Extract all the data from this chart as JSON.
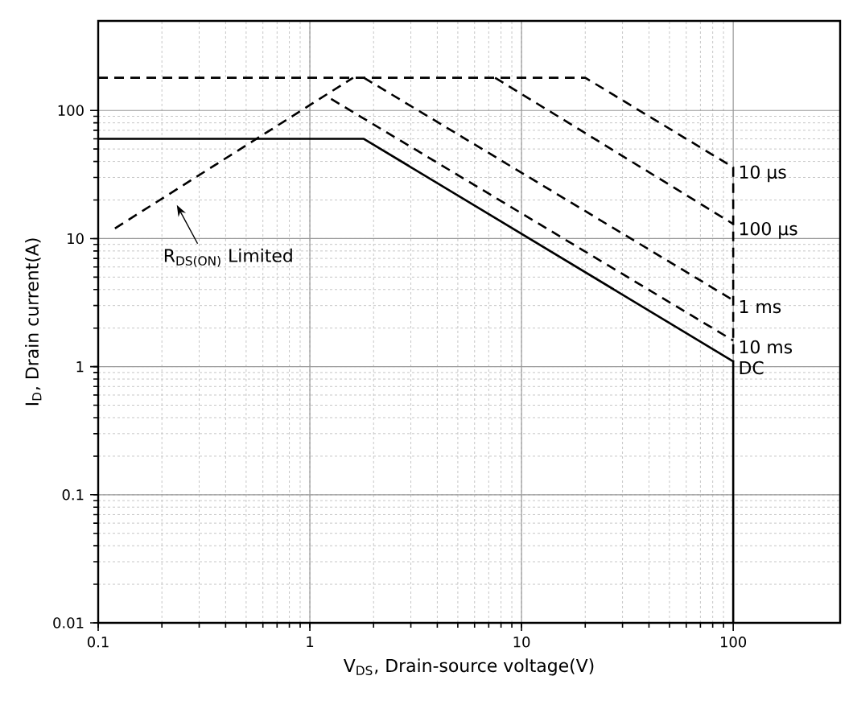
{
  "chart_data": {
    "type": "line",
    "xlabel": "V$_{DS}$, Drain-source voltage(V)",
    "ylabel": "I$_{D}$, Drain current(A)",
    "log": "xy",
    "grid": true,
    "xlim": [
      0.1,
      320
    ],
    "ylim": [
      0.01,
      500
    ],
    "xticks": [
      0.1,
      1,
      10,
      100
    ],
    "yticks": [
      0.01,
      0.1,
      1,
      10,
      100
    ],
    "series": [
      {
        "name": "10 µs",
        "color": "#000000",
        "line_style": "dashed",
        "x": [
          0.1,
          20,
          100,
          100
        ],
        "values": [
          180,
          180,
          36,
          1.1
        ]
      },
      {
        "name": "100 µs",
        "color": "#000000",
        "line_style": "dashed",
        "x": [
          7.5,
          100
        ],
        "values": [
          180,
          13
        ]
      },
      {
        "name": "1 ms",
        "color": "#000000",
        "line_style": "dashed",
        "x": [
          1.8,
          100
        ],
        "values": [
          180,
          3.3
        ]
      },
      {
        "name": "10 ms",
        "color": "#000000",
        "line_style": "dashed",
        "x": [
          1.26,
          100
        ],
        "values": [
          123,
          1.6
        ]
      },
      {
        "color": "#000000",
        "line_style": "dashed",
        "x": [
          0.12,
          1.6
        ],
        "values": [
          12,
          180
        ]
      },
      {
        "name": "DC",
        "color": "#000000",
        "line_style": "solid",
        "x": [
          0.1,
          1.8,
          100,
          100
        ],
        "values": [
          60,
          60,
          1.1,
          0.01
        ]
      }
    ],
    "annotations": [
      "R$_{DS(ON)}$ Limited"
    ]
  }
}
